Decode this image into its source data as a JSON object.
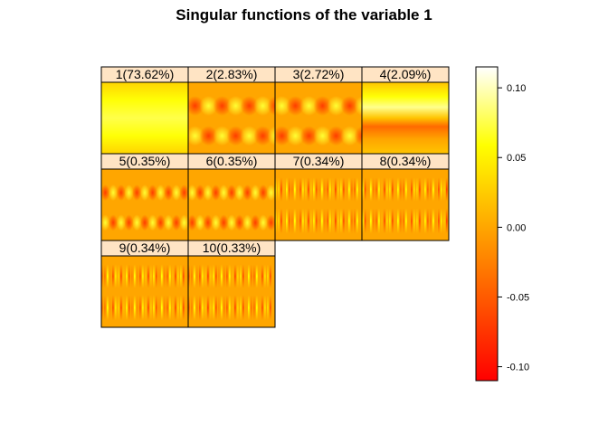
{
  "chart_data": {
    "type": "heatmap",
    "title": "Singular functions of the variable 1",
    "panels": [
      {
        "label": "1(73.62%)",
        "pattern": "flat"
      },
      {
        "label": "2(2.83%)",
        "pattern": "blob-a"
      },
      {
        "label": "3(2.72%)",
        "pattern": "blob-b"
      },
      {
        "label": "4(2.09%)",
        "pattern": "horizontal-band"
      },
      {
        "label": "5(0.35%)",
        "pattern": "mid-a"
      },
      {
        "label": "6(0.35%)",
        "pattern": "mid-b"
      },
      {
        "label": "7(0.34%)",
        "pattern": "fine-a"
      },
      {
        "label": "8(0.34%)",
        "pattern": "fine-b"
      },
      {
        "label": "9(0.34%)",
        "pattern": "fine-c"
      },
      {
        "label": "10(0.33%)",
        "pattern": "fine-d"
      }
    ],
    "layout_grid": {
      "columns": 4,
      "rows": 3
    },
    "colorbar": {
      "ticks": [
        "0.10",
        "0.05",
        "0.00",
        "-0.05",
        "-0.10"
      ],
      "tick_values": [
        0.1,
        0.05,
        0.0,
        -0.05,
        -0.1
      ],
      "range": [
        -0.11,
        0.115
      ],
      "colormap": "heat"
    },
    "colors": {
      "strip_background": "#ffe4c4",
      "heat_low": "#ff0000",
      "heat_mid": "#ffa500",
      "heat_high": "#ffff00",
      "heat_top": "#ffffff"
    }
  }
}
